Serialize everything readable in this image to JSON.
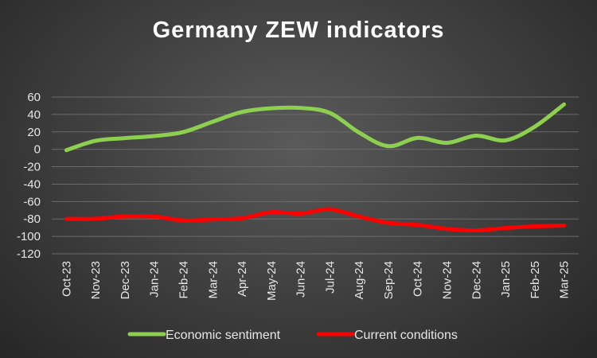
{
  "chart_data": {
    "type": "line",
    "title": "Germany ZEW indicators",
    "xlabel": "",
    "ylabel": "",
    "ylim": [
      -120,
      60
    ],
    "ytick_step": 20,
    "grid": true,
    "legend_position": "bottom",
    "categories": [
      "Oct-23",
      "Nov-23",
      "Dec-23",
      "Jan-24",
      "Feb-24",
      "Mar-24",
      "Apr-24",
      "May-24",
      "Jun-24",
      "Jul-24",
      "Aug-24",
      "Sep-24",
      "Oct-24",
      "Nov-24",
      "Dec-24",
      "Jan-25",
      "Feb-25",
      "Mar-25"
    ],
    "series": [
      {
        "name": "Economic sentiment",
        "color": "#8dcf4f",
        "values": [
          -1,
          9.8,
          12.8,
          15.2,
          19.9,
          31.7,
          42.9,
          47.1,
          47.5,
          41.8,
          19.2,
          3.6,
          13.1,
          7.4,
          15.7,
          10.3,
          26.0,
          51.6
        ]
      },
      {
        "name": "Current conditions",
        "color": "#ff0000",
        "values": [
          -79.9,
          -79.8,
          -77.1,
          -77.3,
          -81.7,
          -80.5,
          -79.2,
          -72.3,
          -73.8,
          -68.9,
          -77.3,
          -84.5,
          -86.9,
          -91.4,
          -93.1,
          -90.4,
          -88.5,
          -87.6
        ]
      }
    ]
  }
}
